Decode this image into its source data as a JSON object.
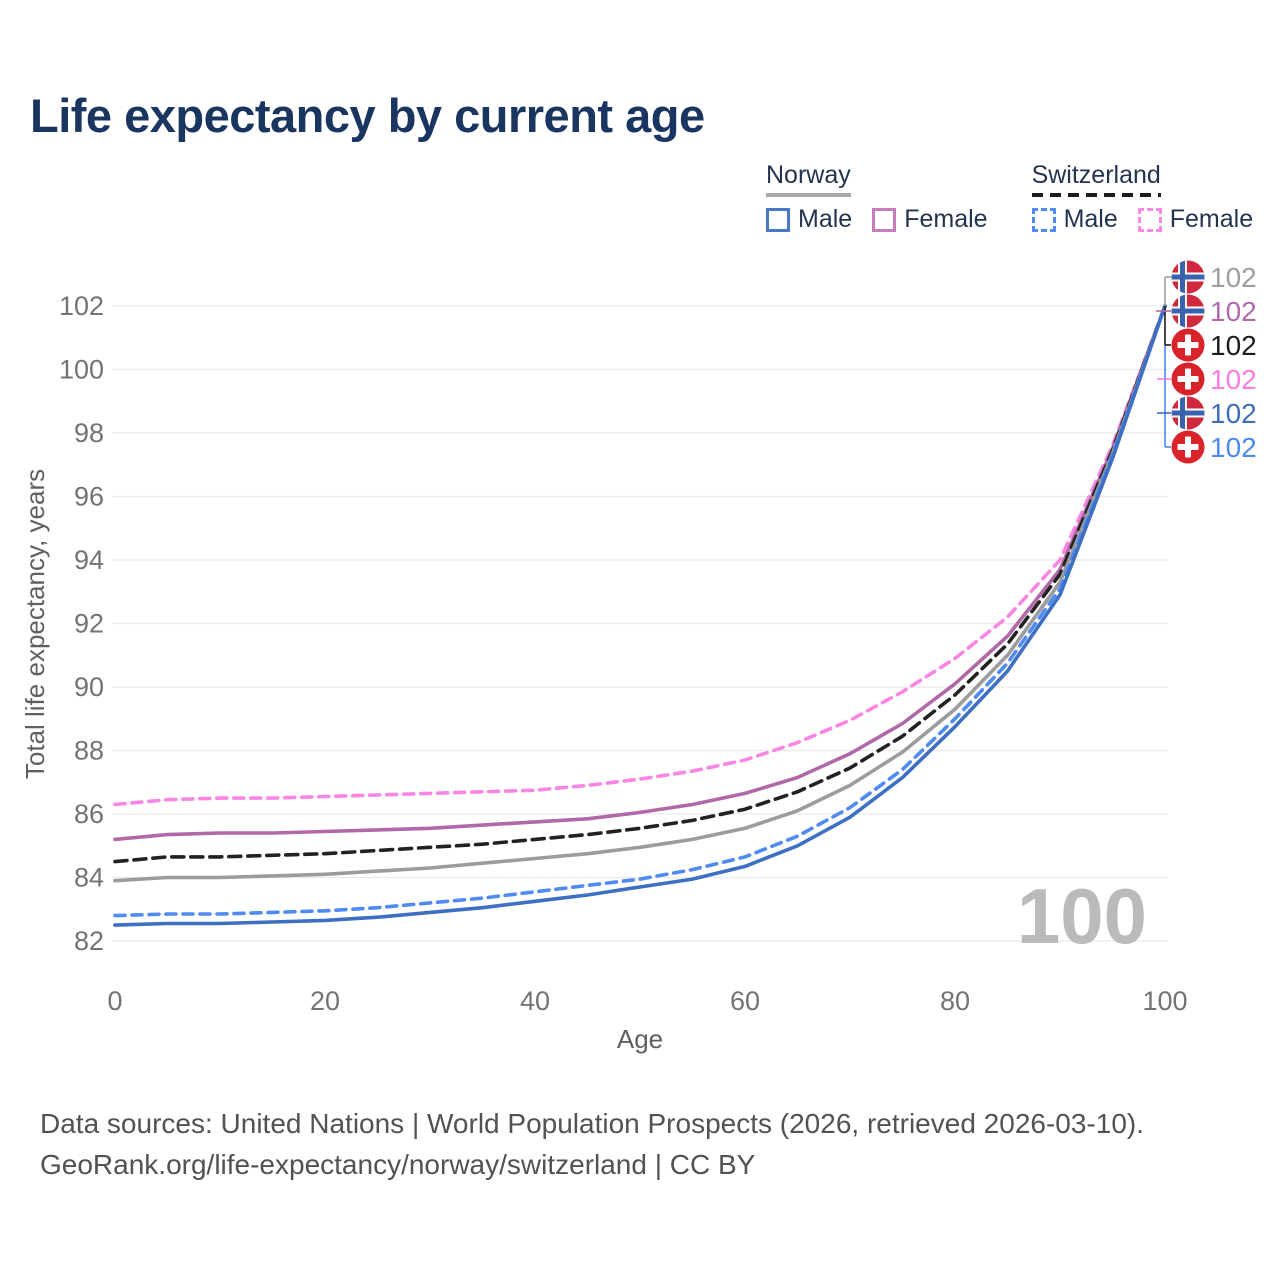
{
  "title": "Life expectancy by current age",
  "legend": {
    "groups": [
      {
        "id": "norway",
        "label": "Norway",
        "line_color": "#a9a9a9",
        "line_style": "solid",
        "items": [
          {
            "id": "norway-male",
            "label": "Male",
            "color": "#4a77c8",
            "style": "solid"
          },
          {
            "id": "norway-female",
            "label": "Female",
            "color": "#c47cba",
            "style": "solid"
          }
        ]
      },
      {
        "id": "switzerland",
        "label": "Switzerland",
        "line_color": "#1c1c1c",
        "line_style": "dashed",
        "items": [
          {
            "id": "switzerland-male",
            "label": "Male",
            "color": "#4f8bf0",
            "style": "dashed"
          },
          {
            "id": "switzerland-female",
            "label": "Female",
            "color": "#fb8ae4",
            "style": "dashed"
          }
        ]
      }
    ]
  },
  "chart_data": {
    "type": "line",
    "title": "Life expectancy by current age",
    "xlabel": "Age",
    "ylabel": "Total life expectancy, years",
    "xlim": [
      0,
      100
    ],
    "ylim": [
      82,
      102
    ],
    "x_ticks": [
      0,
      20,
      40,
      60,
      80,
      100
    ],
    "y_ticks": [
      82,
      84,
      86,
      88,
      90,
      92,
      94,
      96,
      98,
      100,
      102
    ],
    "grid": "horizontal-only",
    "legend_position": "top-right",
    "watermark": "100",
    "x": [
      0,
      5,
      10,
      15,
      20,
      25,
      30,
      35,
      40,
      45,
      50,
      55,
      60,
      65,
      70,
      75,
      80,
      85,
      90,
      95,
      100
    ],
    "series": [
      {
        "name": "Switzerland Female",
        "country": "Switzerland",
        "sex": "Female",
        "flag": "switzerland",
        "color": "#fa86e3",
        "dash": "10,7",
        "label_row": 3,
        "end_label": "102",
        "label_color": "#f97ee1",
        "values": [
          86.3,
          86.45,
          86.5,
          86.5,
          86.55,
          86.6,
          86.65,
          86.7,
          86.75,
          86.9,
          87.1,
          87.35,
          87.7,
          88.25,
          88.95,
          89.85,
          90.9,
          92.2,
          94.0,
          97.6,
          102
        ]
      },
      {
        "name": "Norway Female",
        "country": "Norway",
        "sex": "Female",
        "flag": "norway",
        "color": "#b168a9",
        "dash": null,
        "label_row": 1,
        "end_label": "102",
        "label_color": "#b06aa8",
        "values": [
          85.2,
          85.35,
          85.4,
          85.4,
          85.45,
          85.5,
          85.55,
          85.65,
          85.75,
          85.85,
          86.05,
          86.3,
          86.65,
          87.15,
          87.9,
          88.85,
          90.1,
          91.6,
          93.7,
          97.5,
          102
        ]
      },
      {
        "name": "Switzerland Total",
        "country": "Switzerland",
        "sex": "Total",
        "flag": "switzerland",
        "color": "#222222",
        "dash": "12,7",
        "label_row": 2,
        "end_label": "102",
        "label_color": "#1c1c1c",
        "values": [
          84.5,
          84.65,
          84.65,
          84.7,
          84.75,
          84.85,
          84.95,
          85.05,
          85.2,
          85.35,
          85.55,
          85.8,
          86.15,
          86.7,
          87.45,
          88.45,
          89.75,
          91.35,
          93.55,
          97.45,
          102
        ]
      },
      {
        "name": "Norway Total",
        "country": "Norway",
        "sex": "Total",
        "flag": "norway",
        "color": "#9c9c9c",
        "dash": null,
        "label_row": 0,
        "end_label": "102",
        "label_color": "#9e9e9e",
        "values": [
          83.9,
          84.0,
          84.0,
          84.05,
          84.1,
          84.2,
          84.3,
          84.45,
          84.6,
          84.75,
          84.95,
          85.2,
          85.55,
          86.1,
          86.9,
          87.95,
          89.3,
          91.0,
          93.3,
          97.35,
          102
        ]
      },
      {
        "name": "Switzerland Male",
        "country": "Switzerland",
        "sex": "Male",
        "flag": "switzerland",
        "color": "#4f8bf0",
        "dash": "10,7",
        "label_row": 5,
        "end_label": "102",
        "label_color": "#4d8af0",
        "values": [
          82.8,
          82.85,
          82.85,
          82.9,
          82.95,
          83.05,
          83.2,
          83.35,
          83.55,
          83.75,
          83.95,
          84.25,
          84.65,
          85.3,
          86.2,
          87.4,
          89.0,
          90.75,
          93.1,
          97.3,
          102
        ]
      },
      {
        "name": "Norway Male",
        "country": "Norway",
        "sex": "Male",
        "flag": "norway",
        "color": "#3d6fc2",
        "dash": null,
        "label_row": 4,
        "end_label": "102",
        "label_color": "#3f6fb5",
        "values": [
          82.5,
          82.55,
          82.55,
          82.6,
          82.65,
          82.75,
          82.9,
          83.05,
          83.25,
          83.45,
          83.7,
          83.95,
          84.35,
          85.0,
          85.9,
          87.15,
          88.75,
          90.5,
          92.9,
          97.2,
          102
        ]
      }
    ]
  },
  "footer": {
    "line1": "Data sources: United Nations | World Population Prospects (2026, retrieved 2026-03-10).",
    "line2": "GeoRank.org/life-expectancy/norway/switzerland | CC BY"
  }
}
